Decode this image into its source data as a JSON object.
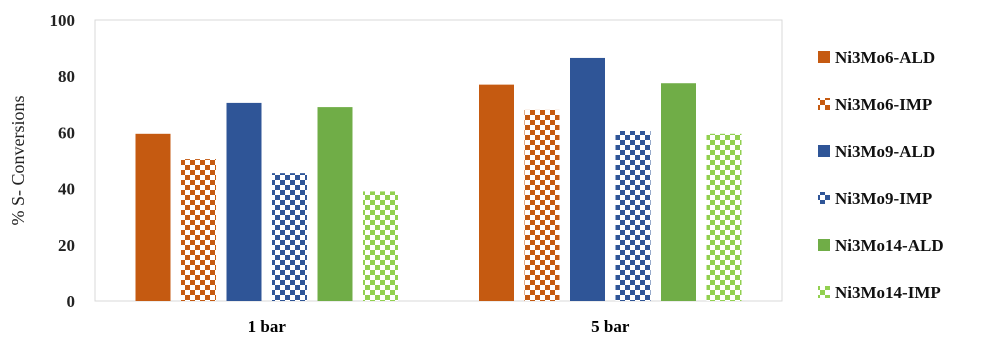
{
  "chart_data": {
    "type": "bar",
    "categories": [
      "1 bar",
      "5 bar"
    ],
    "series": [
      {
        "name": "Ni3Mo6-ALD",
        "values": [
          59.5,
          77
        ],
        "color": "#C55A11",
        "pattern": "solid"
      },
      {
        "name": "Ni3Mo6-IMP",
        "values": [
          50.5,
          68
        ],
        "color": "#C55A11",
        "pattern": "checker"
      },
      {
        "name": "Ni3Mo9-ALD",
        "values": [
          70.5,
          86.5
        ],
        "color": "#2F5597",
        "pattern": "solid"
      },
      {
        "name": "Ni3Mo9-IMP",
        "values": [
          45.5,
          60.5
        ],
        "color": "#2F5597",
        "pattern": "checker"
      },
      {
        "name": "Ni3Mo14-ALD",
        "values": [
          69,
          77.5
        ],
        "color": "#70AD47",
        "pattern": "solid"
      },
      {
        "name": "Ni3Mo14-IMP",
        "values": [
          39,
          59.5
        ],
        "color": "#92D050",
        "pattern": "checker"
      }
    ],
    "ylabel": "% S- Conversions",
    "ylim": [
      0,
      100
    ],
    "yticks": [
      0,
      20,
      40,
      60,
      80,
      100
    ],
    "grid": false,
    "legend": "right"
  }
}
